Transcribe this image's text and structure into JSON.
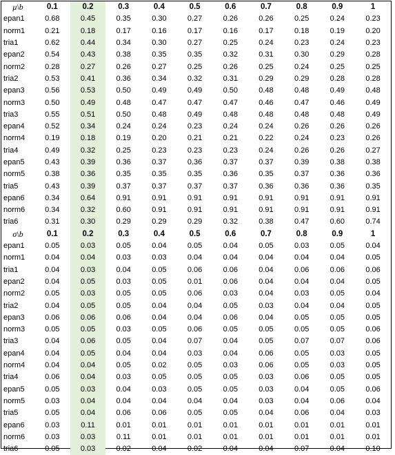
{
  "highlight_color": "#e2efda",
  "highlight_column_index": 1,
  "mean_table": {
    "corner": "μ\\b",
    "headers": [
      "0.1",
      "0.2",
      "0.3",
      "0.4",
      "0.5",
      "0.6",
      "0.7",
      "0.8",
      "0.9",
      "1"
    ],
    "rows": [
      {
        "label": "epan1",
        "values": [
          "0.68",
          "0.45",
          "0.35",
          "0.30",
          "0.27",
          "0.26",
          "0.26",
          "0.25",
          "0.24",
          "0.23"
        ]
      },
      {
        "label": "norm1",
        "values": [
          "0.21",
          "0.18",
          "0.17",
          "0.16",
          "0.17",
          "0.16",
          "0.17",
          "0.18",
          "0.19",
          "0.20"
        ]
      },
      {
        "label": "tria1",
        "values": [
          "0.62",
          "0.44",
          "0.34",
          "0.30",
          "0.27",
          "0.25",
          "0.24",
          "0.23",
          "0.24",
          "0.23"
        ]
      },
      {
        "label": "epan2",
        "values": [
          "0.54",
          "0.43",
          "0.38",
          "0.35",
          "0.35",
          "0.32",
          "0.31",
          "0.30",
          "0.29",
          "0.28"
        ]
      },
      {
        "label": "norm2",
        "values": [
          "0.28",
          "0.27",
          "0.26",
          "0.27",
          "0.25",
          "0.26",
          "0.25",
          "0.24",
          "0.25",
          "0.25"
        ]
      },
      {
        "label": "tria2",
        "values": [
          "0.53",
          "0.41",
          "0.36",
          "0.34",
          "0.32",
          "0.31",
          "0.29",
          "0.29",
          "0.28",
          "0.28"
        ]
      },
      {
        "label": "epan3",
        "values": [
          "0.56",
          "0.53",
          "0.50",
          "0.49",
          "0.49",
          "0.50",
          "0.48",
          "0.48",
          "0.49",
          "0.48"
        ]
      },
      {
        "label": "norm3",
        "values": [
          "0.50",
          "0.49",
          "0.48",
          "0.47",
          "0.47",
          "0.47",
          "0.46",
          "0.47",
          "0.46",
          "0.49"
        ]
      },
      {
        "label": "tria3",
        "values": [
          "0.55",
          "0.51",
          "0.50",
          "0.48",
          "0.49",
          "0.48",
          "0.48",
          "0.48",
          "0.48",
          "0.49"
        ]
      },
      {
        "label": "epan4",
        "values": [
          "0.52",
          "0.34",
          "0.24",
          "0.24",
          "0.23",
          "0.24",
          "0.24",
          "0.26",
          "0.26",
          "0.26"
        ]
      },
      {
        "label": "norm4",
        "values": [
          "0.19",
          "0.18",
          "0.19",
          "0.20",
          "0.21",
          "0.21",
          "0.22",
          "0.24",
          "0.23",
          "0.26"
        ]
      },
      {
        "label": "tria4",
        "values": [
          "0.49",
          "0.32",
          "0.25",
          "0.23",
          "0.23",
          "0.23",
          "0.24",
          "0.26",
          "0.26",
          "0.27"
        ]
      },
      {
        "label": "epan5",
        "values": [
          "0.43",
          "0.39",
          "0.36",
          "0.37",
          "0.36",
          "0.37",
          "0.37",
          "0.39",
          "0.38",
          "0.38"
        ]
      },
      {
        "label": "norm5",
        "values": [
          "0.38",
          "0.36",
          "0.35",
          "0.35",
          "0.35",
          "0.36",
          "0.35",
          "0.37",
          "0.36",
          "0.36"
        ]
      },
      {
        "label": "tria5",
        "values": [
          "0.43",
          "0.39",
          "0.37",
          "0.37",
          "0.37",
          "0.37",
          "0.36",
          "0.36",
          "0.36",
          "0.35"
        ]
      },
      {
        "label": "epan6",
        "values": [
          "0.34",
          "0.64",
          "0.91",
          "0.91",
          "0.91",
          "0.91",
          "0.91",
          "0.91",
          "0.91",
          "0.91"
        ]
      },
      {
        "label": "norm6",
        "values": [
          "0.34",
          "0.32",
          "0.60",
          "0.91",
          "0.91",
          "0.91",
          "0.91",
          "0.91",
          "0.91",
          "0.91"
        ]
      },
      {
        "label": "tria6",
        "values": [
          "0.31",
          "0.30",
          "0.29",
          "0.29",
          "0.29",
          "0.32",
          "0.38",
          "0.47",
          "0.60",
          "0.74"
        ]
      }
    ]
  },
  "sd_table": {
    "corner": "σ\\b",
    "headers": [
      "0.1",
      "0.2",
      "0.3",
      "0.4",
      "0.5",
      "0.6",
      "0.7",
      "0.8",
      "0.9",
      "1"
    ],
    "rows": [
      {
        "label": "epan1",
        "values": [
          "0.05",
          "0.03",
          "0.05",
          "0.04",
          "0.05",
          "0.04",
          "0.05",
          "0.03",
          "0.05",
          "0.04"
        ]
      },
      {
        "label": "norm1",
        "values": [
          "0.04",
          "0.04",
          "0.03",
          "0.03",
          "0.04",
          "0.04",
          "0.04",
          "0.04",
          "0.04",
          "0.05"
        ]
      },
      {
        "label": "tria1",
        "values": [
          "0.04",
          "0.03",
          "0.04",
          "0.05",
          "0.06",
          "0.06",
          "0.04",
          "0.06",
          "0.06",
          "0.06"
        ]
      },
      {
        "label": "epan2",
        "values": [
          "0.04",
          "0.05",
          "0.03",
          "0.05",
          "0.01",
          "0.06",
          "0.04",
          "0.04",
          "0.04",
          "0.05"
        ]
      },
      {
        "label": "norm2",
        "values": [
          "0.05",
          "0.03",
          "0.05",
          "0.05",
          "0.06",
          "0.03",
          "0.04",
          "0.03",
          "0.05",
          "0.04"
        ]
      },
      {
        "label": "tria2",
        "values": [
          "0.04",
          "0.05",
          "0.05",
          "0.04",
          "0.04",
          "0.05",
          "0.03",
          "0.04",
          "0.04",
          "0.05"
        ]
      },
      {
        "label": "epan3",
        "values": [
          "0.06",
          "0.06",
          "0.06",
          "0.04",
          "0.04",
          "0.06",
          "0.04",
          "0.05",
          "0.05",
          "0.05"
        ]
      },
      {
        "label": "norm3",
        "values": [
          "0.05",
          "0.05",
          "0.03",
          "0.05",
          "0.06",
          "0.05",
          "0.05",
          "0.05",
          "0.05",
          "0.06"
        ]
      },
      {
        "label": "tria3",
        "values": [
          "0.04",
          "0.06",
          "0.05",
          "0.04",
          "0.07",
          "0.04",
          "0.05",
          "0.07",
          "0.07",
          "0.06"
        ]
      },
      {
        "label": "epan4",
        "values": [
          "0.04",
          "0.05",
          "0.04",
          "0.04",
          "0.03",
          "0.04",
          "0.06",
          "0.05",
          "0.03",
          "0.05"
        ]
      },
      {
        "label": "norm4",
        "values": [
          "0.04",
          "0.04",
          "0.05",
          "0.02",
          "0.05",
          "0.03",
          "0.06",
          "0.05",
          "0.03",
          "0.05"
        ]
      },
      {
        "label": "tria4",
        "values": [
          "0.06",
          "0.04",
          "0.03",
          "0.05",
          "0.05",
          "0.05",
          "0.03",
          "0.06",
          "0.05",
          "0.05"
        ]
      },
      {
        "label": "epan5",
        "values": [
          "0.05",
          "0.03",
          "0.04",
          "0.03",
          "0.05",
          "0.05",
          "0.03",
          "0.04",
          "0.05",
          "0.06"
        ]
      },
      {
        "label": "norm5",
        "values": [
          "0.03",
          "0.04",
          "0.04",
          "0.04",
          "0.04",
          "0.04",
          "0.03",
          "0.04",
          "0.06",
          "0.04"
        ]
      },
      {
        "label": "tria5",
        "values": [
          "0.05",
          "0.04",
          "0.06",
          "0.06",
          "0.05",
          "0.05",
          "0.04",
          "0.06",
          "0.04",
          "0.03"
        ]
      },
      {
        "label": "epan6",
        "values": [
          "0.03",
          "0.11",
          "0.01",
          "0.01",
          "0.01",
          "0.01",
          "0.01",
          "0.01",
          "0.01",
          "0.01"
        ]
      },
      {
        "label": "norm6",
        "values": [
          "0.03",
          "0.03",
          "0.11",
          "0.01",
          "0.01",
          "0.01",
          "0.01",
          "0.01",
          "0.01",
          "0.01"
        ]
      },
      {
        "label": "tria6",
        "values": [
          "0.05",
          "0.03",
          "0.02",
          "0.04",
          "0.02",
          "0.04",
          "0.04",
          "0.07",
          "0.04",
          "0.10"
        ]
      }
    ]
  }
}
